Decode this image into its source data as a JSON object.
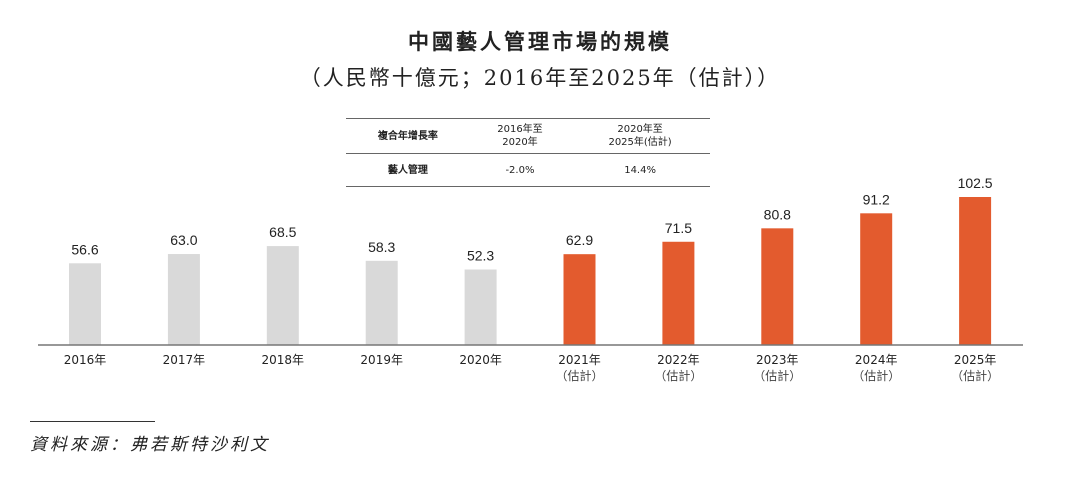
{
  "chart_data": {
    "type": "bar",
    "title": "中國藝人管理市場的規模",
    "subtitle": "（人民幣十億元；2016年至2025年（估計））",
    "categories": [
      "2016年",
      "2017年",
      "2018年",
      "2019年",
      "2020年",
      "2021年",
      "2022年",
      "2023年",
      "2024年",
      "2025年"
    ],
    "category_notes": [
      "",
      "",
      "",
      "",
      "",
      "（估計）",
      "（估計）",
      "（估計）",
      "（估計）",
      "（估計）"
    ],
    "values": [
      56.6,
      63.0,
      68.5,
      58.3,
      52.3,
      62.9,
      71.5,
      80.8,
      91.2,
      102.5
    ],
    "value_labels": [
      "56.6",
      "63.0",
      "68.5",
      "58.3",
      "52.3",
      "62.9",
      "71.5",
      "80.8",
      "91.2",
      "102.5"
    ],
    "colors": {
      "historical": "#d9d9d9",
      "estimated": "#e35b2e"
    },
    "estimated_from_index": 5,
    "grid": false,
    "ylim": [
      0,
      110
    ]
  },
  "cagr_table": {
    "header": [
      "複合年增長率",
      "2016年至\n2020年",
      "2020年至\n2025年(估計)"
    ],
    "row": [
      "藝人管理",
      "-2.0%",
      "14.4%"
    ]
  },
  "source": "資料來源：弗若斯特沙利文"
}
